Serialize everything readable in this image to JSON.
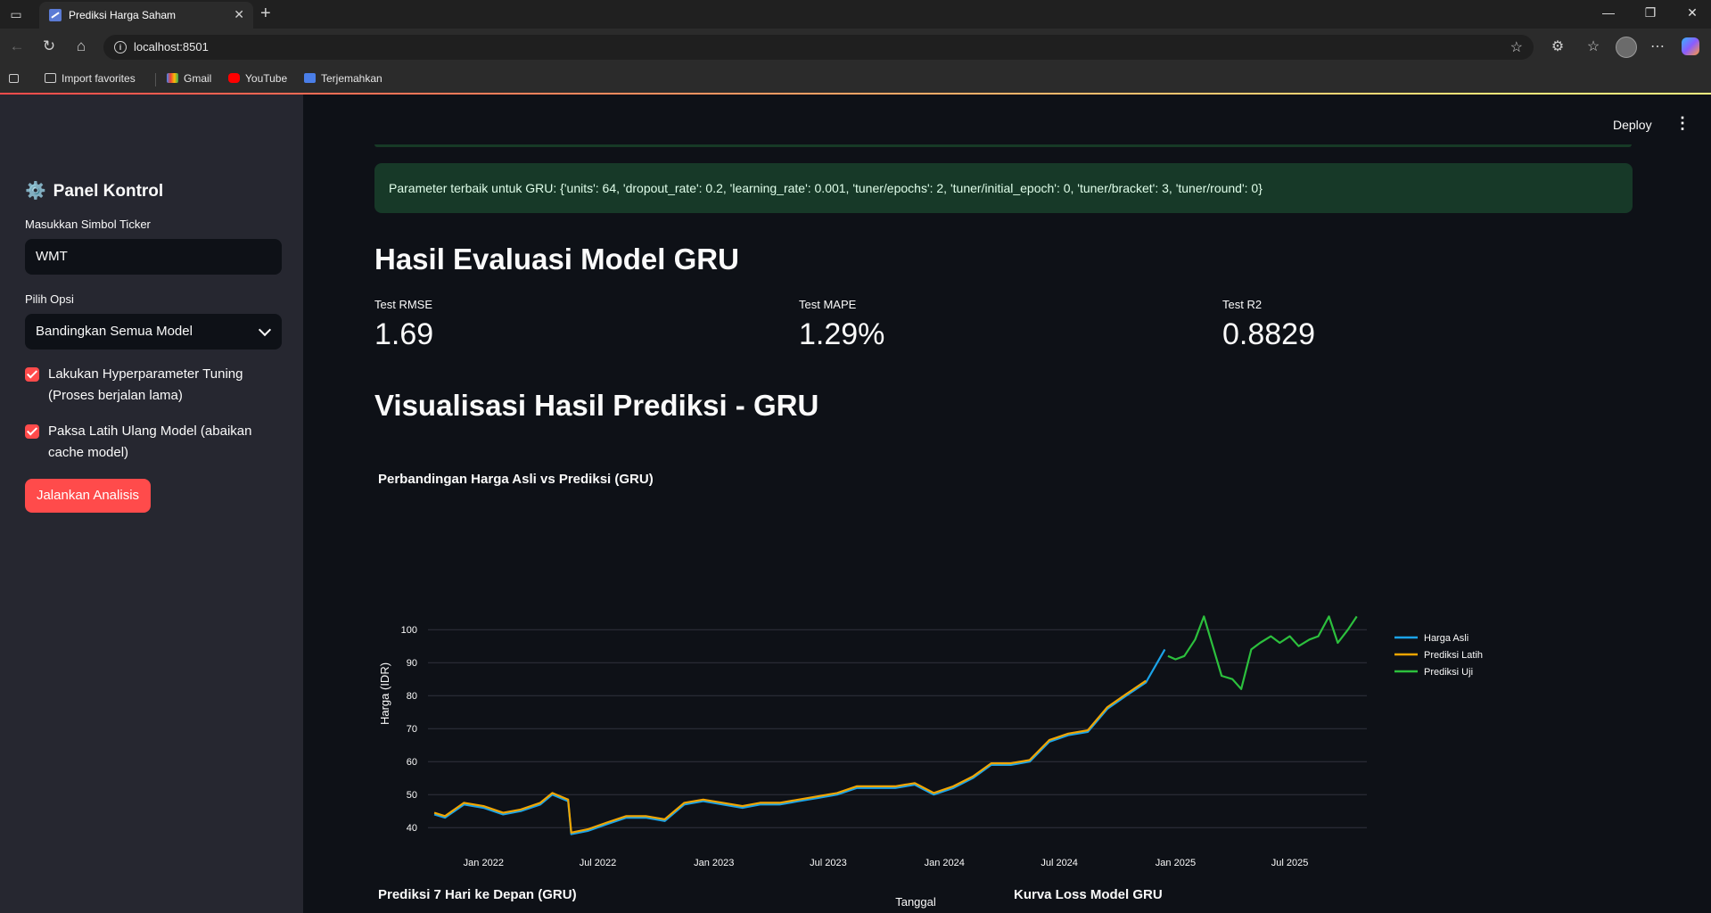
{
  "browser": {
    "tab_title": "Prediksi Harga Saham",
    "url": "localhost:8501",
    "bookmarks": [
      "Import favorites",
      "Gmail",
      "YouTube",
      "Terjemahkan"
    ]
  },
  "sidebar": {
    "title": "Panel Kontrol",
    "ticker_label": "Masukkan Simbol Ticker",
    "ticker_value": "WMT",
    "option_label": "Pilih Opsi",
    "option_value": "Bandingkan Semua Model",
    "checkbox_tuning": "Lakukan Hyperparameter Tuning (Proses berjalan lama)",
    "checkbox_retrain": "Paksa Latih Ulang Model (abaikan cache model)",
    "run_button": "Jalankan Analisis"
  },
  "header": {
    "deploy": "Deploy"
  },
  "main": {
    "success_message": "Parameter terbaik untuk GRU: {'units': 64, 'dropout_rate': 0.2, 'learning_rate': 0.001, 'tuner/epochs': 2, 'tuner/initial_epoch': 0, 'tuner/bracket': 3, 'tuner/round': 0}",
    "eval_heading": "Hasil Evaluasi Model GRU",
    "metrics": [
      {
        "label": "Test RMSE",
        "value": "1.69"
      },
      {
        "label": "Test MAPE",
        "value": "1.29%"
      },
      {
        "label": "Test R2",
        "value": "0.8829"
      }
    ],
    "viz_heading": "Visualisasi Hasil Prediksi - GRU",
    "chart_title": "Perbandingan Harga Asli vs Prediksi (GRU)",
    "forecast_title": "Prediksi 7 Hari ke Depan (GRU)",
    "loss_title": "Kurva Loss Model GRU"
  },
  "colors": {
    "harga_asli": "#1ba3e8",
    "prediksi_latih": "#f0a500",
    "prediksi_uji": "#2cc03d",
    "accent": "#ff4b4b"
  },
  "chart_data": {
    "type": "line",
    "title": "Perbandingan Harga Asli vs Prediksi (GRU)",
    "xlabel": "Tanggal",
    "ylabel": "Harga (IDR)",
    "x_ticks": [
      "Jan 2022",
      "Jul 2022",
      "Jan 2023",
      "Jul 2023",
      "Jan 2024",
      "Jul 2024",
      "Jan 2025",
      "Jul 2025"
    ],
    "y_ticks": [
      40,
      50,
      60,
      70,
      80,
      90,
      100
    ],
    "ylim": [
      36,
      106
    ],
    "legend_position": "top-right",
    "series": [
      {
        "name": "Harga Asli",
        "x": [
          "2021-10-15",
          "2021-11-01",
          "2021-12-01",
          "2022-01-01",
          "2022-02-01",
          "2022-03-01",
          "2022-04-01",
          "2022-04-20",
          "2022-05-15",
          "2022-05-20",
          "2022-06-15",
          "2022-07-15",
          "2022-08-15",
          "2022-09-15",
          "2022-10-15",
          "2022-11-15",
          "2022-12-15",
          "2023-01-15",
          "2023-02-15",
          "2023-03-15",
          "2023-04-15",
          "2023-05-15",
          "2023-06-15",
          "2023-07-15",
          "2023-08-15",
          "2023-09-15",
          "2023-10-15",
          "2023-11-15",
          "2023-12-15",
          "2024-01-15",
          "2024-02-15",
          "2024-03-15",
          "2024-04-15",
          "2024-05-15",
          "2024-06-15",
          "2024-07-15",
          "2024-08-15",
          "2024-09-15",
          "2024-10-15",
          "2024-11-15",
          "2024-12-15"
        ],
        "y": [
          44,
          43,
          47,
          46,
          44,
          45,
          47,
          50,
          48,
          38,
          39,
          41,
          43,
          43,
          42,
          47,
          48,
          47,
          46,
          47,
          47,
          48,
          49,
          50,
          52,
          52,
          52,
          53,
          50,
          52,
          55,
          59,
          59,
          60,
          66,
          68,
          69,
          76,
          80,
          84,
          94
        ]
      },
      {
        "name": "Prediksi Latih",
        "x": [
          "2021-10-15",
          "2021-11-01",
          "2021-12-01",
          "2022-01-01",
          "2022-02-01",
          "2022-03-01",
          "2022-04-01",
          "2022-04-20",
          "2022-05-15",
          "2022-05-20",
          "2022-06-15",
          "2022-07-15",
          "2022-08-15",
          "2022-09-15",
          "2022-10-15",
          "2022-11-15",
          "2022-12-15",
          "2023-01-15",
          "2023-02-15",
          "2023-03-15",
          "2023-04-15",
          "2023-05-15",
          "2023-06-15",
          "2023-07-15",
          "2023-08-15",
          "2023-09-15",
          "2023-10-15",
          "2023-11-15",
          "2023-12-15",
          "2024-01-15",
          "2024-02-15",
          "2024-03-15",
          "2024-04-15",
          "2024-05-15",
          "2024-06-15",
          "2024-07-15",
          "2024-08-15",
          "2024-09-15",
          "2024-10-15",
          "2024-11-15"
        ],
        "y": [
          44.5,
          43.5,
          47.5,
          46.5,
          44.5,
          45.5,
          47.5,
          50.5,
          48.5,
          38.5,
          39.5,
          41.5,
          43.5,
          43.5,
          42.5,
          47.5,
          48.5,
          47.5,
          46.5,
          47.5,
          47.5,
          48.5,
          49.5,
          50.5,
          52.5,
          52.5,
          52.5,
          53.5,
          50.5,
          52.5,
          55.5,
          59.5,
          59.5,
          60.5,
          66.5,
          68.5,
          69.5,
          76.5,
          80.5,
          84.5
        ]
      },
      {
        "name": "Prediksi Uji",
        "x": [
          "2024-12-20",
          "2025-01-01",
          "2025-01-15",
          "2025-02-01",
          "2025-02-15",
          "2025-03-01",
          "2025-03-15",
          "2025-04-01",
          "2025-04-15",
          "2025-05-01",
          "2025-05-15",
          "2025-06-01",
          "2025-06-15",
          "2025-07-01",
          "2025-07-15",
          "2025-08-01",
          "2025-08-15",
          "2025-09-01",
          "2025-09-15",
          "2025-10-01",
          "2025-10-15"
        ],
        "y": [
          92,
          91,
          92,
          97,
          104,
          95,
          86,
          85,
          82,
          94,
          96,
          98,
          96,
          98,
          95,
          97,
          98,
          104,
          96,
          100,
          104
        ]
      }
    ]
  }
}
